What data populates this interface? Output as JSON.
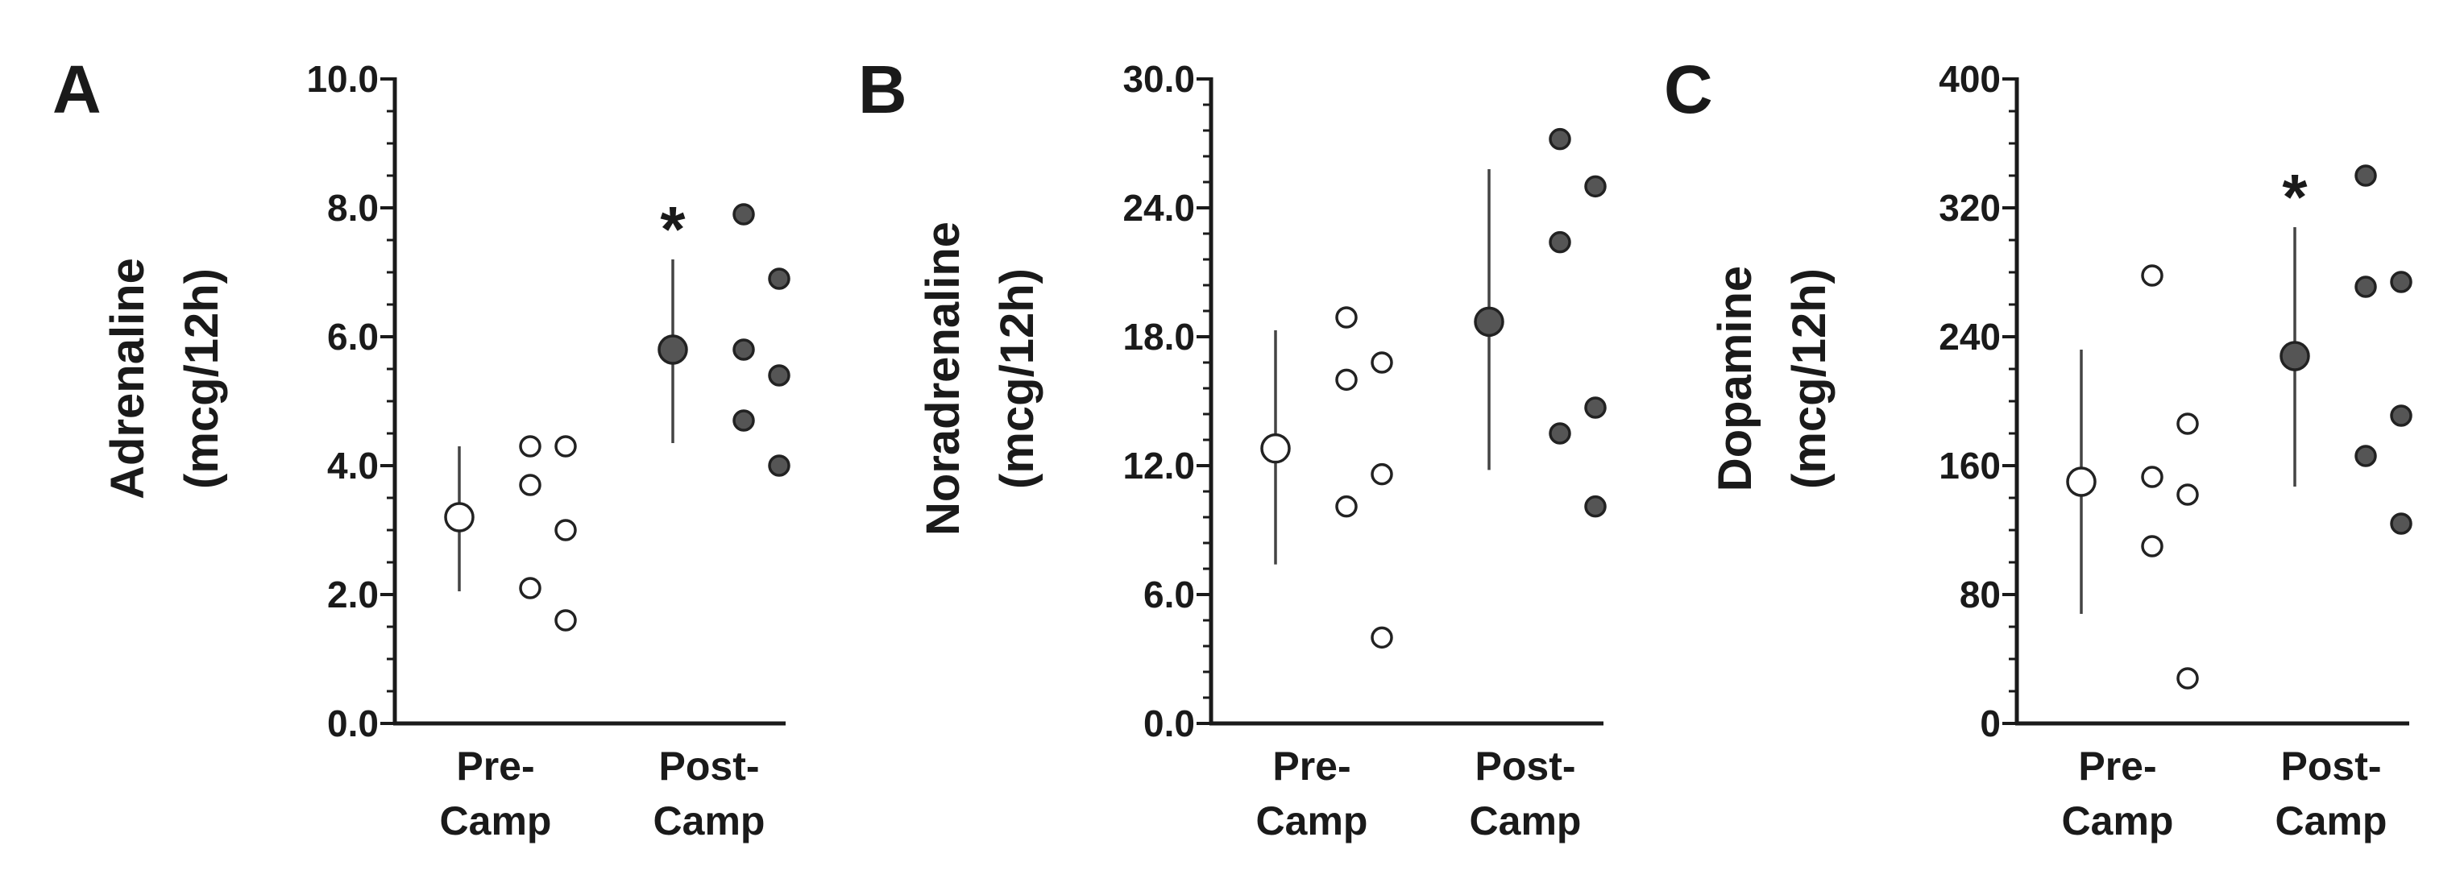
{
  "colors": {
    "pre": "#ffffff",
    "post": "#555555",
    "stroke": "#222222"
  },
  "chart_data": [
    {
      "type": "scatter",
      "panel_label": "A",
      "ylabel_line1": "Adrenaline",
      "ylabel_line2": "(mcg/12h)",
      "ylim": [
        0,
        10
      ],
      "yticks": [
        0,
        2,
        4,
        6,
        8,
        10
      ],
      "ytick_labels": [
        "0.0",
        "2.0",
        "4.0",
        "6.0",
        "8.0",
        "10.0"
      ],
      "minor_per_major": 4,
      "categories": [
        {
          "line1": "Pre-",
          "line2": "Camp"
        },
        {
          "line1": "Post-",
          "line2": "Camp"
        }
      ],
      "series": [
        {
          "mean": 3.2,
          "err_low": 2.05,
          "err_high": 4.3,
          "points": [
            4.3,
            4.3,
            3.7,
            3.0,
            2.1,
            1.6
          ]
        },
        {
          "mean": 5.8,
          "err_low": 4.35,
          "err_high": 7.2,
          "points": [
            7.9,
            6.9,
            5.8,
            5.4,
            4.7,
            4.0
          ]
        }
      ],
      "significance": [
        {
          "category": 1,
          "label": "*"
        }
      ]
    },
    {
      "type": "scatter",
      "panel_label": "B",
      "ylabel_line1": "Noradrenaline",
      "ylabel_line2": "(mcg/12h)",
      "ylim": [
        0,
        30
      ],
      "yticks": [
        0,
        6,
        12,
        18,
        24,
        30
      ],
      "ytick_labels": [
        "0.0",
        "6.0",
        "12.0",
        "18.0",
        "24.0",
        "30.0"
      ],
      "minor_per_major": 5,
      "categories": [
        {
          "line1": "Pre-",
          "line2": "Camp"
        },
        {
          "line1": "Post-",
          "line2": "Camp"
        }
      ],
      "series": [
        {
          "mean": 12.8,
          "err_low": 7.4,
          "err_high": 18.3,
          "points": [
            18.9,
            16.8,
            16.0,
            11.6,
            10.1,
            4.0
          ]
        },
        {
          "mean": 18.7,
          "err_low": 11.8,
          "err_high": 25.8,
          "points": [
            27.2,
            25.0,
            22.4,
            14.7,
            13.5,
            10.1
          ]
        }
      ],
      "significance": []
    },
    {
      "type": "scatter",
      "panel_label": "C",
      "ylabel_line1": "Dopamine",
      "ylabel_line2": "(mcg/12h)",
      "ylim": [
        0,
        400
      ],
      "yticks": [
        0,
        80,
        160,
        240,
        320,
        400
      ],
      "ytick_labels": [
        "0",
        "80",
        "160",
        "240",
        "320",
        "400"
      ],
      "minor_per_major": 4,
      "categories": [
        {
          "line1": "Pre-",
          "line2": "Camp"
        },
        {
          "line1": "Post-",
          "line2": "Camp"
        }
      ],
      "series": [
        {
          "mean": 150,
          "err_low": 68,
          "err_high": 232,
          "points": [
            278,
            186,
            153,
            142,
            110,
            28
          ]
        },
        {
          "mean": 228,
          "err_low": 147,
          "err_high": 308,
          "points": [
            340,
            274,
            271,
            191,
            166,
            124
          ]
        }
      ],
      "significance": [
        {
          "category": 1,
          "label": "*"
        }
      ]
    }
  ]
}
